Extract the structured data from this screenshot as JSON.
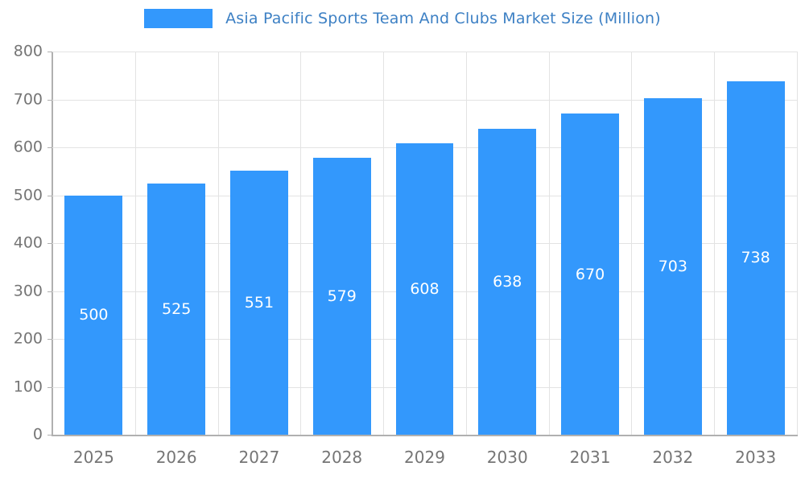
{
  "chart_data": {
    "type": "bar",
    "title": "Asia Pacific Sports Team And Clubs Market Size (Million)",
    "categories": [
      "2025",
      "2026",
      "2027",
      "2028",
      "2029",
      "2030",
      "2031",
      "2032",
      "2033"
    ],
    "values": [
      500,
      525,
      551,
      579,
      608,
      638,
      670,
      703,
      738
    ],
    "xlabel": "",
    "ylabel": "",
    "ylim": [
      0,
      800
    ],
    "ytick_step": 100,
    "grid": true,
    "legend_position": "top-center",
    "value_labels_position": "inside-middle",
    "colors": {
      "bar": "#3398fc",
      "bar_value_label": "#ffffff",
      "title": "#3d80c4",
      "axis_text": "#757575",
      "grid": "#e3e3e3",
      "axis_line": "#b0b0b0",
      "background": "#ffffff"
    }
  }
}
